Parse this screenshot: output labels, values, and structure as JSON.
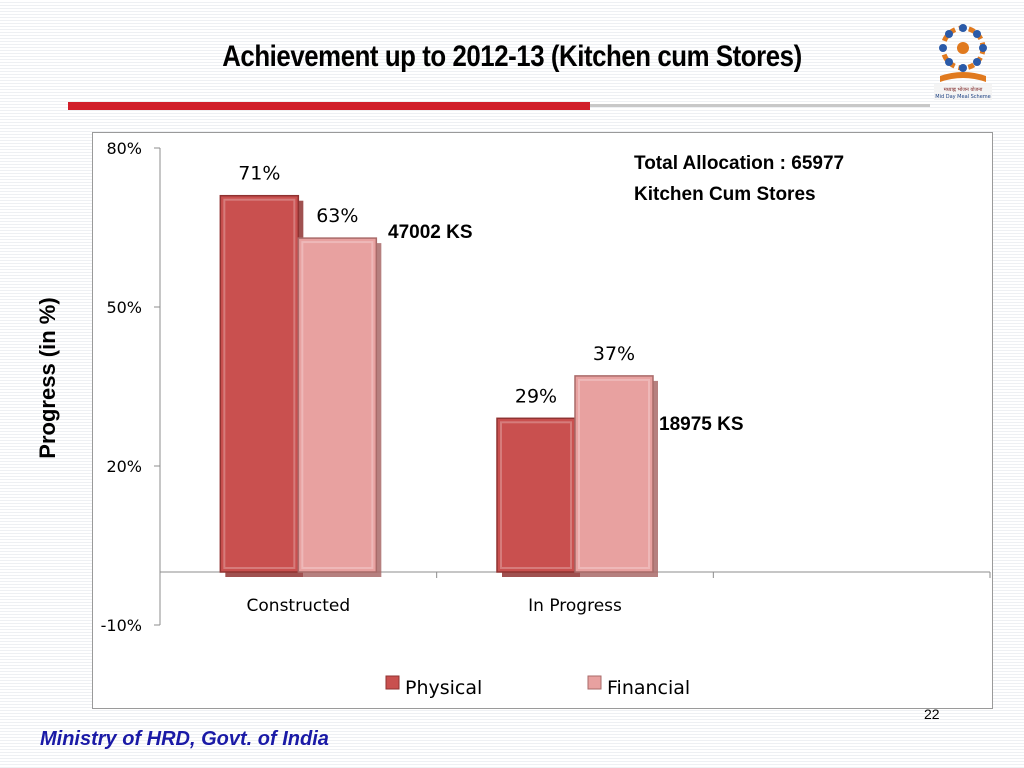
{
  "slide": {
    "title": "Achievement up to 2012-13 (Kitchen cum Stores)",
    "footer": "Ministry of HRD, Govt. of India",
    "page_number": "22",
    "logo_text": "मध्याह्न भोजन योजना Mid Day Meal Scheme"
  },
  "annotations": {
    "total_line1": "Total Allocation : 65977",
    "total_line2": "Kitchen Cum Stores",
    "constructed": "47002 KS",
    "in_progress": "18975 KS"
  },
  "colors": {
    "physical": "#c9504f",
    "financial": "#e8a1a0",
    "title_rule": "#d11f2a",
    "footer_text": "#1a1aa6"
  },
  "chart_data": {
    "type": "bar",
    "title": "",
    "xlabel": "",
    "ylabel": "Progress (in %)",
    "categories": [
      "Constructed",
      "In Progress"
    ],
    "series": [
      {
        "name": "Physical",
        "values": [
          71,
          29
        ],
        "labels": [
          "71%",
          "29%"
        ]
      },
      {
        "name": "Financial",
        "values": [
          63,
          37
        ],
        "labels": [
          "63%",
          "37%"
        ]
      }
    ],
    "ylim": [
      -10,
      80
    ],
    "y_ticks": [
      80,
      50,
      20,
      -10
    ],
    "y_tick_labels": [
      "80%",
      "50%",
      "20%",
      "-10%"
    ],
    "grid": false,
    "legend_position": "bottom",
    "style": "3d"
  }
}
